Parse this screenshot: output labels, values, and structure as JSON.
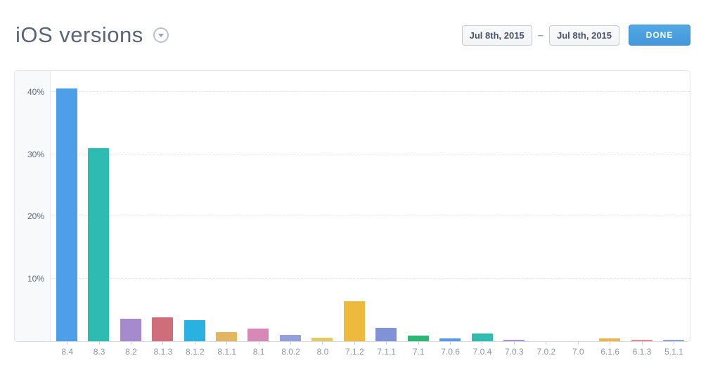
{
  "header": {
    "title": "iOS versions",
    "date_from": "Jul 8th, 2015",
    "date_to": "Jul 8th, 2015",
    "range_separator": "–",
    "done_label": "DONE"
  },
  "colors": {
    "accent_button": "#4aa1e0",
    "panel_border": "#e2e4e9",
    "gutter_background": "#f8f9fb",
    "title_text": "#5a6477",
    "y_axis_text": "#5d6979",
    "x_axis_text": "#8d96a5"
  },
  "chart_data": {
    "type": "bar",
    "title": "iOS versions",
    "categories": [
      "8.4",
      "8.3",
      "8.2",
      "8.1.3",
      "8.1.2",
      "8.1.1",
      "8.1",
      "8.0.2",
      "8.0",
      "7.1.2",
      "7.1.1",
      "7.1",
      "7.0.6",
      "7.0.4",
      "7.0.3",
      "7.0.2",
      "7.0",
      "6.1.6",
      "6.1.3",
      "5.1.1"
    ],
    "values": [
      40.5,
      31.0,
      3.6,
      3.8,
      3.4,
      1.5,
      2.0,
      1.0,
      0.6,
      6.4,
      2.1,
      0.9,
      0.45,
      1.2,
      0.25,
      0.05,
      0.05,
      0.4,
      0.25,
      0.25
    ],
    "unit": "%",
    "bar_colors": [
      "#4d9fe8",
      "#2ebcb2",
      "#a58bce",
      "#cf6e7a",
      "#29b1e2",
      "#e2b55f",
      "#d688b6",
      "#93a0da",
      "#e2ca64",
      "#eeba3e",
      "#8292d6",
      "#2cb671",
      "#549be8",
      "#30bcae",
      "#a98fd2",
      "#cccccc",
      "#cccccc",
      "#e6b84d",
      "#e18995",
      "#92a0d8"
    ],
    "yticks": [
      10,
      20,
      30,
      40
    ],
    "ytick_labels": [
      "10%",
      "20%",
      "30%",
      "40%"
    ],
    "ylim": [
      0,
      43.4
    ],
    "grid": "horizontal-dashed",
    "legend": "none"
  }
}
